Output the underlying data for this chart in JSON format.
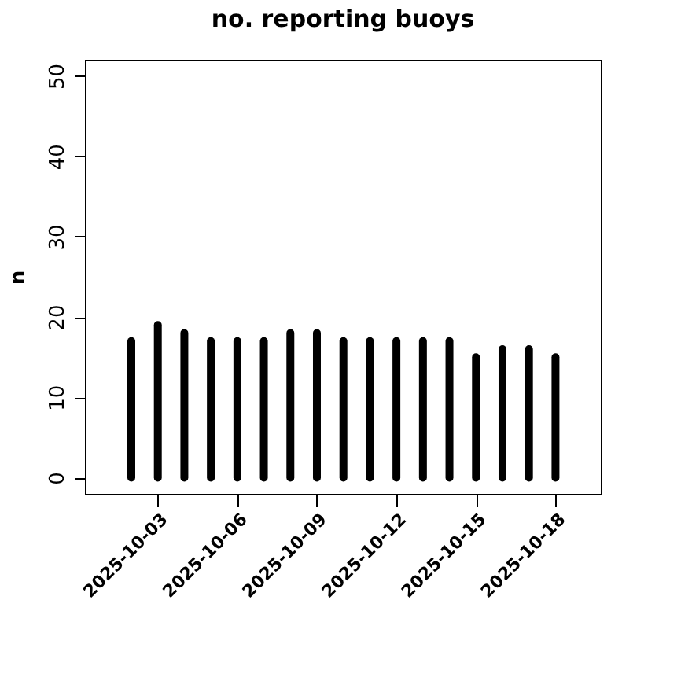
{
  "chart_data": {
    "type": "bar",
    "title": "no. reporting buoys",
    "ylabel": "n",
    "x": [
      "2025-10-02",
      "2025-10-03",
      "2025-10-04",
      "2025-10-05",
      "2025-10-06",
      "2025-10-07",
      "2025-10-08",
      "2025-10-09",
      "2025-10-10",
      "2025-10-11",
      "2025-10-12",
      "2025-10-13",
      "2025-10-14",
      "2025-10-15",
      "2025-10-16",
      "2025-10-17",
      "2025-10-18"
    ],
    "values": [
      17,
      19,
      18,
      17,
      17,
      17,
      18,
      18,
      17,
      17,
      17,
      17,
      17,
      15,
      16,
      16,
      15
    ],
    "color": "#000000",
    "xlim": [
      "2025-09-30T06:00",
      "2025-10-19T17:00"
    ],
    "xticks": [
      "2025-10-03",
      "2025-10-06",
      "2025-10-09",
      "2025-10-12",
      "2025-10-15",
      "2025-10-18"
    ],
    "ylim": [
      -2,
      52
    ],
    "yticks": [
      0,
      10,
      20,
      30,
      40,
      50
    ],
    "grid": false
  }
}
